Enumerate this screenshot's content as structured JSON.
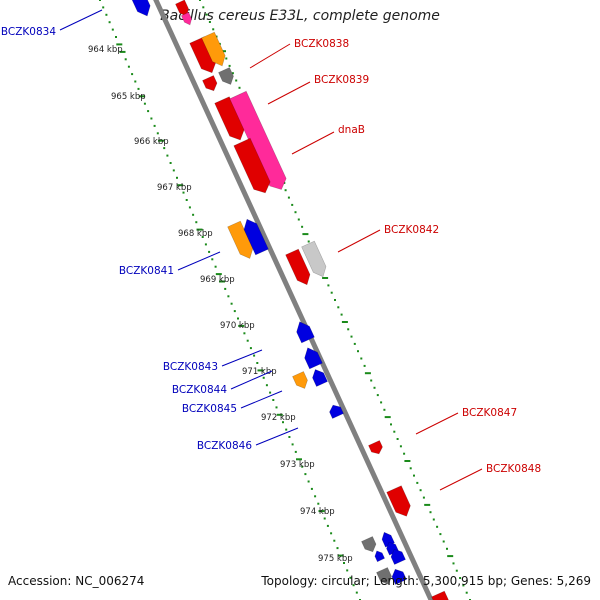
{
  "title": "Bacillus cereus E33L, complete genome",
  "footer": {
    "accession": "Accession: NC_006274",
    "summary": "Topology: circular; Length: 5,300,915 bp; Genes: 5,269"
  },
  "colors": {
    "backbone": "#808080",
    "tick": "#1a8a1a",
    "forward_label": "#cc0000",
    "reverse_label": "#0000bb",
    "red": "#e00000",
    "pink": "#ff2a9a",
    "gray": "#707070",
    "light_gray": "#c8c8c8",
    "orange": "#ff9a0a",
    "blue": "#0000e0"
  },
  "scale": {
    "unit": "kbp",
    "labels": [
      "964 kbp",
      "965 kbp",
      "966 kbp",
      "967 kbp",
      "968 kbp",
      "969 kbp",
      "970 kbp",
      "971 kbp",
      "972 kbp",
      "973 kbp",
      "974 kbp",
      "975 kbp"
    ]
  },
  "gene_labels": {
    "forward": [
      "BCZK0838",
      "BCZK0839",
      "dnaB",
      "BCZK0842",
      "BCZK0847",
      "BCZK0848"
    ],
    "reverse": [
      "BCZK0834",
      "BCZK0841",
      "BCZK0843",
      "BCZK0844",
      "BCZK0845",
      "BCZK0846"
    ]
  }
}
